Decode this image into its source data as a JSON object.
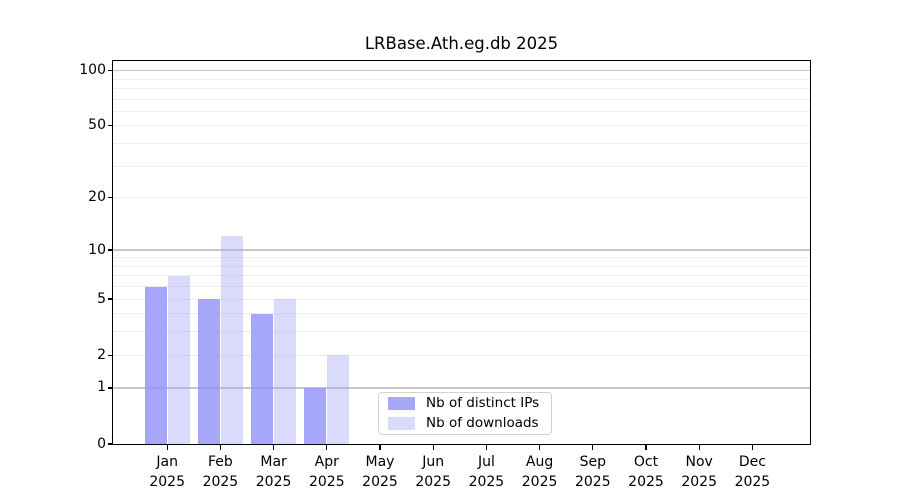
{
  "title": "LRBase.Ath.eg.db 2025",
  "chart_data": {
    "type": "bar",
    "title": "LRBase.Ath.eg.db 2025",
    "xlabel": "",
    "ylabel": "",
    "year": "2025",
    "categories": [
      "Jan",
      "Feb",
      "Mar",
      "Apr",
      "May",
      "Jun",
      "Jul",
      "Aug",
      "Sep",
      "Oct",
      "Nov",
      "Dec"
    ],
    "series": [
      {
        "name": "Nb of distinct IPs",
        "color": "rgba(145,145,249,0.8)",
        "legend_color": "#a7a7f9",
        "values": [
          6,
          5,
          4,
          1,
          0,
          0,
          0,
          0,
          0,
          0,
          0,
          0
        ]
      },
      {
        "name": "Nb of downloads",
        "color": "rgba(167,167,250,0.42)",
        "legend_color": "#dadafb",
        "values": [
          7,
          12,
          5,
          2,
          0,
          0,
          0,
          0,
          0,
          0,
          0,
          0
        ]
      }
    ],
    "yaxis": {
      "scale": "log10(1+x)",
      "ticks": [
        0,
        1,
        2,
        5,
        10,
        20,
        50,
        100
      ],
      "major_gridlines": [
        1,
        10,
        100
      ],
      "minor_gridlines": [
        2,
        3,
        4,
        5,
        6,
        7,
        8,
        9,
        20,
        30,
        40,
        50,
        60,
        70,
        80,
        90
      ],
      "ylim": [
        0,
        111
      ],
      "grid": "on"
    },
    "legend_position": "lower center"
  },
  "colors": {
    "background": "#ffffff",
    "spine": "#000000",
    "major_grid": "#c6c6c6",
    "minor_grid": "#ededed",
    "legend_border": "#d2d2d2"
  }
}
